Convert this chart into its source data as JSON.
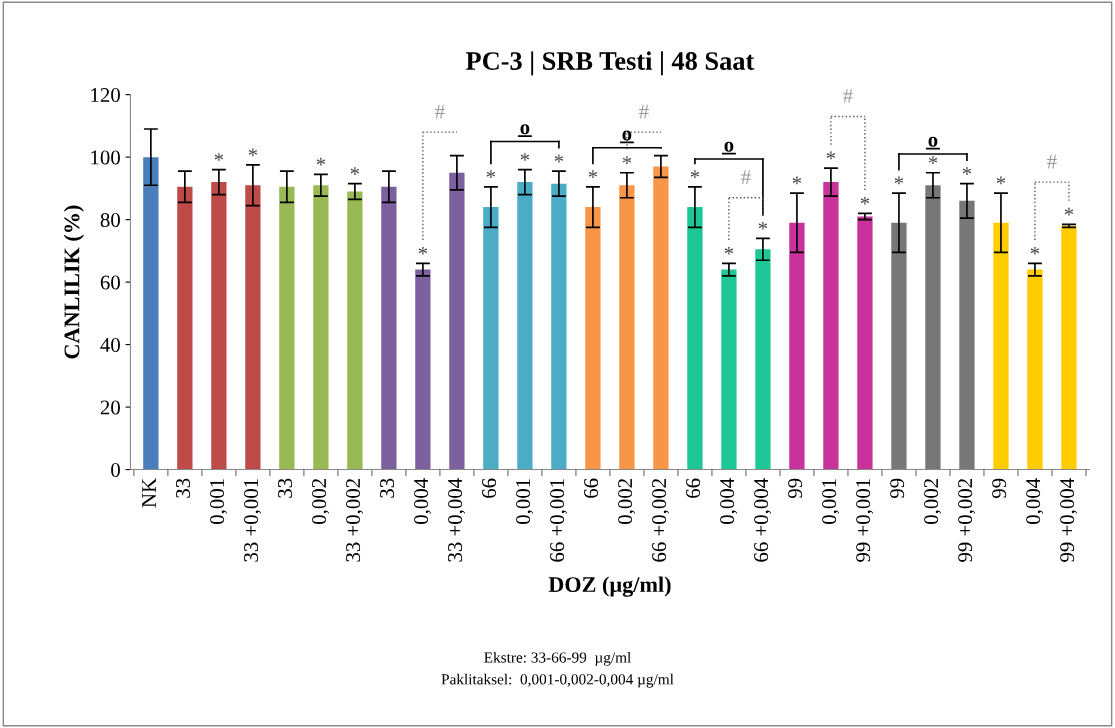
{
  "chart_data": {
    "type": "bar",
    "title": "PC-3 | SRB Testi | 48 Saat",
    "xlabel": "DOZ (µg/ml)",
    "ylabel": "CANLILIK (%)",
    "categories": [
      "NK",
      "33",
      "0,001",
      "33 +0,001",
      "33",
      "0,002",
      "33 +0,002",
      "33",
      "0,004",
      "33 +0,004",
      "66",
      "0,001",
      "66 +0,001",
      "66",
      "0,002",
      "66 +0,002",
      "66",
      "0,004",
      "66 +0,004",
      "99",
      "0,001",
      "99 +0,001",
      "99",
      "0,002",
      "99 +0,002",
      "99",
      "0,004",
      "99 +0,004"
    ],
    "values": [
      100,
      90.5,
      92,
      91,
      90.5,
      91,
      89,
      90.5,
      64,
      95,
      84,
      92,
      91.5,
      84,
      91,
      97,
      84,
      64,
      70.5,
      79,
      92,
      81,
      79,
      91,
      86,
      79,
      64,
      78
    ],
    "errors": [
      9,
      5,
      4,
      6.5,
      5,
      3.5,
      2.5,
      5,
      2,
      5.5,
      6.5,
      4,
      4,
      6.5,
      4,
      3.5,
      6.5,
      2,
      3.5,
      9.5,
      4.5,
      1,
      9.5,
      4,
      5.5,
      9.5,
      2,
      0.5
    ],
    "colors": [
      "#4a7ebb",
      "#be4b48",
      "#be4b48",
      "#be4b48",
      "#98b954",
      "#98b954",
      "#98b954",
      "#7d60a0",
      "#7d60a0",
      "#7d60a0",
      "#4bacc6",
      "#4bacc6",
      "#4bacc6",
      "#f79646",
      "#f79646",
      "#f79646",
      "#1ec896",
      "#1ec896",
      "#1ec896",
      "#c8329b",
      "#c8329b",
      "#c8329b",
      "#777777",
      "#777777",
      "#777777",
      "#ffcc00",
      "#ffcc00",
      "#ffcc00"
    ],
    "ylim": [
      0,
      120
    ],
    "yticks": [
      0,
      20,
      40,
      60,
      80,
      100,
      120
    ],
    "grid": false,
    "legend": false,
    "annotations": [
      "*",
      "*",
      "*",
      "*",
      "*",
      "*",
      "*",
      "*",
      "*",
      "*",
      "*",
      "*",
      "*",
      "*",
      "*",
      "*",
      "*",
      "*",
      "*",
      "*",
      "*",
      "*",
      "#",
      "o",
      "o",
      "#",
      "o",
      "#",
      "#",
      "o",
      "#",
      "Ekstre: 33-66-99  µg/ml",
      "Paklitaksel:  0,001-0,002-0,004 µg/ml"
    ]
  }
}
